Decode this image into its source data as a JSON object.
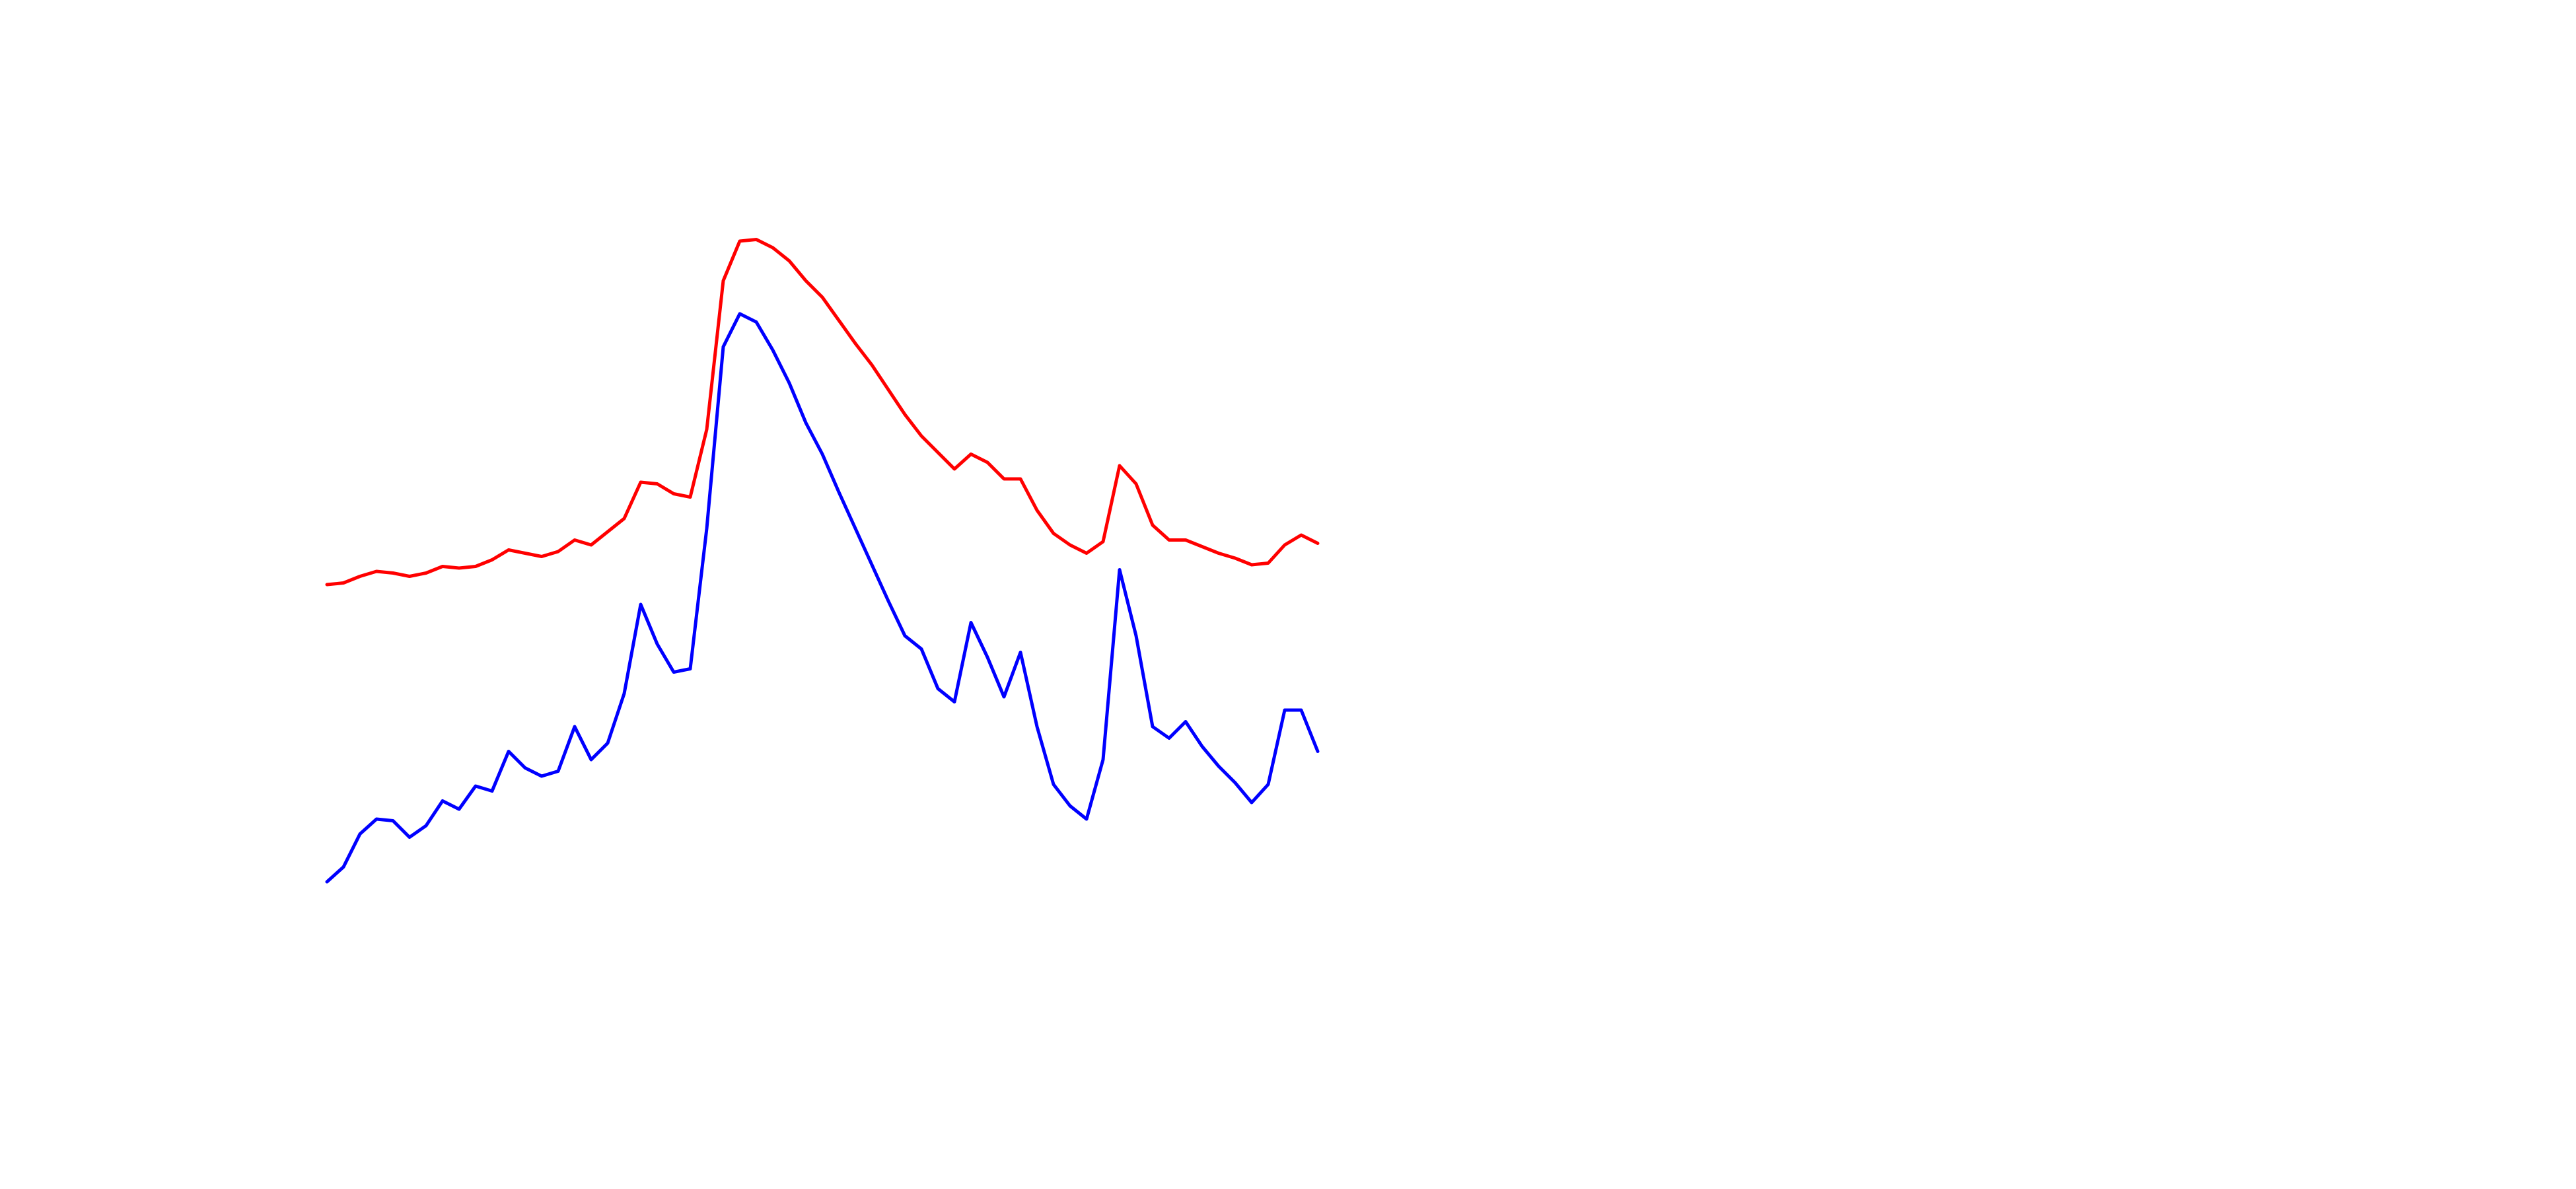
{
  "chart_data": {
    "type": "line",
    "ylim": [
      0,
      600
    ],
    "series": [
      {
        "color": "#ff0000",
        "values": [
          246,
          247,
          251,
          254,
          253,
          251,
          253,
          257,
          256,
          257,
          261,
          267,
          265,
          263,
          266,
          273,
          270,
          278,
          286,
          308,
          307,
          301,
          299,
          340,
          430,
          454,
          455,
          450,
          442,
          430,
          420,
          406,
          392,
          379,
          364,
          349,
          336,
          326,
          316,
          325,
          320,
          310,
          310,
          291,
          277,
          270,
          265,
          272,
          318,
          307,
          282,
          273,
          273,
          269,
          265,
          262,
          258,
          259,
          270,
          276,
          271
        ]
      },
      {
        "color": "#0000ff",
        "values": [
          66,
          75,
          95,
          104,
          103,
          93,
          100,
          115,
          110,
          124,
          121,
          145,
          135,
          130,
          133,
          160,
          140,
          150,
          180,
          234,
          210,
          193,
          195,
          280,
          390,
          410,
          405,
          388,
          368,
          344,
          325,
          302,
          280,
          258,
          236,
          215,
          207,
          183,
          175,
          223,
          202,
          178,
          205,
          160,
          125,
          112,
          104,
          140,
          255,
          215,
          160,
          153,
          163,
          148,
          136,
          126,
          114,
          125,
          170,
          170,
          145
        ]
      }
    ]
  }
}
